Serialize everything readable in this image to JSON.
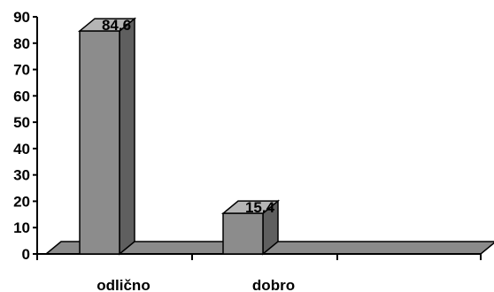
{
  "chart_data": {
    "type": "bar",
    "categories": [
      "odlično",
      "dobro",
      ""
    ],
    "values": [
      84.6,
      15.4,
      null
    ],
    "data_labels": [
      "84.6",
      "15.4",
      ""
    ],
    "ylim": [
      0,
      90
    ],
    "yticks": [
      0,
      10,
      20,
      30,
      40,
      50,
      60,
      70,
      80,
      90
    ],
    "title": "",
    "xlabel": "",
    "ylabel": "",
    "grid": false,
    "style": "3d",
    "colors": {
      "bar_front": "#8c8c8c",
      "bar_side": "#5f5f5f",
      "bar_top": "#b5b5b5",
      "floor": "#8a8a8a",
      "outline": "#000000"
    }
  }
}
